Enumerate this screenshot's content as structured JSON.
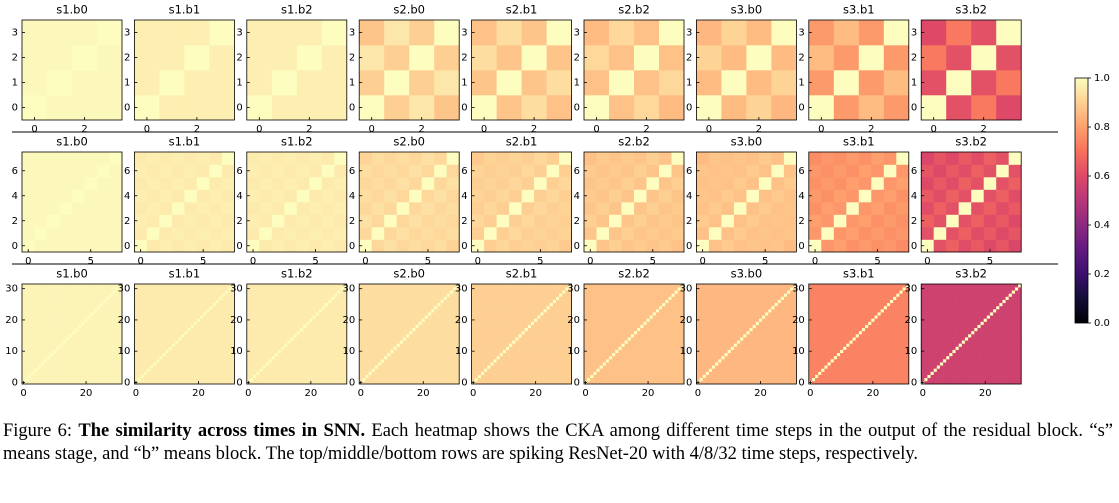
{
  "rows": [
    {
      "xlim": [
        -0.5,
        3.5
      ],
      "ylim": [
        -0.5,
        3.5
      ],
      "xticks": [
        0,
        2
      ],
      "yticks": [
        0,
        1,
        2,
        3
      ],
      "panels": [
        {
          "title": "s1.b0",
          "values_by_lag": [
            1,
            0.99,
            0.99,
            0.99
          ]
        },
        {
          "title": "s1.b1",
          "values_by_lag": [
            1,
            0.97,
            0.97,
            0.97
          ]
        },
        {
          "title": "s1.b2",
          "values_by_lag": [
            1,
            0.97,
            0.97,
            0.97
          ]
        },
        {
          "title": "s2.b0",
          "values_by_lag": [
            1,
            0.9,
            0.95,
            0.88
          ]
        },
        {
          "title": "s2.b1",
          "values_by_lag": [
            1,
            0.88,
            0.93,
            0.87
          ]
        },
        {
          "title": "s2.b2",
          "values_by_lag": [
            1,
            0.87,
            0.92,
            0.86
          ]
        },
        {
          "title": "s3.b0",
          "values_by_lag": [
            1,
            0.86,
            0.91,
            0.85
          ]
        },
        {
          "title": "s3.b1",
          "values_by_lag": [
            1,
            0.79,
            0.86,
            0.79
          ]
        },
        {
          "title": "s3.b2",
          "values_by_lag": [
            1,
            0.62,
            0.72,
            0.6
          ]
        }
      ]
    },
    {
      "xlim": [
        -0.5,
        7.5
      ],
      "ylim": [
        -0.5,
        7.5
      ],
      "xticks": [
        0,
        5
      ],
      "yticks": [
        0,
        2,
        4,
        6
      ],
      "panels": [
        {
          "title": "s1.b0",
          "values_by_lag": [
            1,
            0.99,
            0.99,
            0.99,
            0.99,
            0.99,
            0.99,
            0.99
          ]
        },
        {
          "title": "s1.b1",
          "values_by_lag": [
            1,
            0.96,
            0.97,
            0.96,
            0.97,
            0.96,
            0.97,
            0.96
          ]
        },
        {
          "title": "s1.b2",
          "values_by_lag": [
            1,
            0.96,
            0.97,
            0.96,
            0.97,
            0.96,
            0.97,
            0.96
          ]
        },
        {
          "title": "s2.b0",
          "values_by_lag": [
            1,
            0.92,
            0.94,
            0.92,
            0.93,
            0.92,
            0.93,
            0.91
          ]
        },
        {
          "title": "s2.b1",
          "values_by_lag": [
            1,
            0.9,
            0.92,
            0.9,
            0.91,
            0.9,
            0.91,
            0.89
          ]
        },
        {
          "title": "s2.b2",
          "values_by_lag": [
            1,
            0.88,
            0.9,
            0.88,
            0.89,
            0.88,
            0.89,
            0.87
          ]
        },
        {
          "title": "s3.b0",
          "values_by_lag": [
            1,
            0.87,
            0.89,
            0.87,
            0.88,
            0.87,
            0.88,
            0.86
          ]
        },
        {
          "title": "s3.b1",
          "values_by_lag": [
            1,
            0.78,
            0.8,
            0.77,
            0.79,
            0.77,
            0.78,
            0.76
          ]
        },
        {
          "title": "s3.b2",
          "values_by_lag": [
            1,
            0.62,
            0.66,
            0.61,
            0.64,
            0.6,
            0.63,
            0.59
          ]
        }
      ]
    },
    {
      "xlim": [
        -0.5,
        31.5
      ],
      "ylim": [
        -0.5,
        31.5
      ],
      "xticks": [
        0,
        20
      ],
      "yticks": [
        0,
        10,
        20,
        30
      ],
      "panels": [
        {
          "title": "s1.b0",
          "values_by_lag": [
            1,
            0.98,
            0.98,
            0.98,
            0.98,
            0.98,
            0.98,
            0.98,
            0.98,
            0.98,
            0.98,
            0.98,
            0.98,
            0.98,
            0.98,
            0.98,
            0.98,
            0.98,
            0.98,
            0.98,
            0.98,
            0.98,
            0.98,
            0.98,
            0.98,
            0.98,
            0.98,
            0.98,
            0.98,
            0.98,
            0.98,
            0.98
          ]
        },
        {
          "title": "s1.b1",
          "values_by_lag": [
            1,
            0.96,
            0.96,
            0.96,
            0.96,
            0.96,
            0.96,
            0.96,
            0.96,
            0.96,
            0.96,
            0.96,
            0.96,
            0.96,
            0.96,
            0.96,
            0.96,
            0.96,
            0.96,
            0.96,
            0.96,
            0.96,
            0.96,
            0.96,
            0.96,
            0.96,
            0.96,
            0.96,
            0.96,
            0.96,
            0.96,
            0.96
          ]
        },
        {
          "title": "s1.b2",
          "values_by_lag": [
            1,
            0.96,
            0.96,
            0.96,
            0.96,
            0.96,
            0.96,
            0.96,
            0.96,
            0.96,
            0.96,
            0.96,
            0.96,
            0.96,
            0.96,
            0.96,
            0.96,
            0.96,
            0.96,
            0.96,
            0.96,
            0.96,
            0.96,
            0.96,
            0.96,
            0.96,
            0.96,
            0.96,
            0.96,
            0.96,
            0.96,
            0.96
          ]
        },
        {
          "title": "s2.b0",
          "values_by_lag": [
            1,
            0.93,
            0.93,
            0.93,
            0.93,
            0.93,
            0.93,
            0.93,
            0.93,
            0.93,
            0.93,
            0.93,
            0.93,
            0.93,
            0.93,
            0.93,
            0.93,
            0.93,
            0.93,
            0.93,
            0.93,
            0.93,
            0.93,
            0.93,
            0.93,
            0.93,
            0.93,
            0.93,
            0.93,
            0.93,
            0.93,
            0.93
          ]
        },
        {
          "title": "s2.b1",
          "values_by_lag": [
            1,
            0.9,
            0.9,
            0.9,
            0.9,
            0.9,
            0.9,
            0.9,
            0.9,
            0.9,
            0.9,
            0.9,
            0.9,
            0.9,
            0.9,
            0.9,
            0.9,
            0.9,
            0.9,
            0.9,
            0.9,
            0.9,
            0.9,
            0.9,
            0.9,
            0.9,
            0.9,
            0.9,
            0.9,
            0.9,
            0.9,
            0.9
          ]
        },
        {
          "title": "s2.b2",
          "values_by_lag": [
            1,
            0.87,
            0.87,
            0.87,
            0.87,
            0.87,
            0.87,
            0.87,
            0.87,
            0.87,
            0.87,
            0.87,
            0.87,
            0.87,
            0.87,
            0.87,
            0.87,
            0.87,
            0.87,
            0.87,
            0.87,
            0.87,
            0.87,
            0.87,
            0.87,
            0.87,
            0.87,
            0.87,
            0.87,
            0.87,
            0.87,
            0.87
          ]
        },
        {
          "title": "s3.b0",
          "values_by_lag": [
            1,
            0.85,
            0.85,
            0.85,
            0.85,
            0.85,
            0.85,
            0.85,
            0.85,
            0.85,
            0.85,
            0.85,
            0.85,
            0.85,
            0.85,
            0.85,
            0.85,
            0.85,
            0.85,
            0.85,
            0.85,
            0.85,
            0.85,
            0.85,
            0.85,
            0.85,
            0.85,
            0.85,
            0.85,
            0.85,
            0.85,
            0.85
          ]
        },
        {
          "title": "s3.b1",
          "values_by_lag": [
            1,
            0.74,
            0.74,
            0.74,
            0.74,
            0.74,
            0.74,
            0.74,
            0.74,
            0.74,
            0.74,
            0.74,
            0.74,
            0.74,
            0.74,
            0.74,
            0.74,
            0.74,
            0.74,
            0.74,
            0.74,
            0.74,
            0.74,
            0.74,
            0.74,
            0.74,
            0.74,
            0.74,
            0.74,
            0.74,
            0.74,
            0.74
          ]
        },
        {
          "title": "s3.b2",
          "values_by_lag": [
            1,
            0.56,
            0.56,
            0.56,
            0.56,
            0.56,
            0.56,
            0.56,
            0.56,
            0.56,
            0.56,
            0.56,
            0.56,
            0.56,
            0.56,
            0.56,
            0.56,
            0.56,
            0.56,
            0.56,
            0.56,
            0.56,
            0.56,
            0.56,
            0.56,
            0.56,
            0.56,
            0.56,
            0.56,
            0.56,
            0.56,
            0.56
          ]
        }
      ]
    }
  ],
  "colorbar": {
    "lim": [
      0,
      1
    ],
    "ticks": [
      {
        "value": 0,
        "label": "0.0"
      },
      {
        "value": 0.2,
        "label": "0.2"
      },
      {
        "value": 0.4,
        "label": "0.4"
      },
      {
        "value": 0.6,
        "label": "0.6"
      },
      {
        "value": 0.8,
        "label": "0.8"
      },
      {
        "value": 1,
        "label": "1.0"
      }
    ]
  },
  "caption": {
    "label": "Figure 6:",
    "bold": "The similarity across times in SNN.",
    "text": "Each heatmap shows the CKA among different time steps in the output of the residual block. “s” means stage, and “b” means block. The top/middle/bottom rows are spiking ResNet-20 with 4/8/32 time steps, respectively."
  }
}
